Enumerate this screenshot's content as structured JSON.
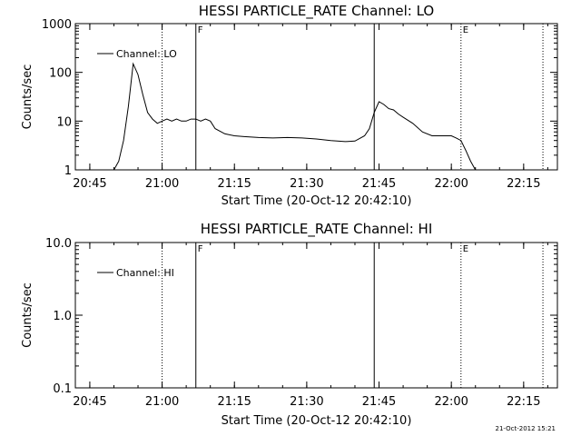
{
  "chart_data": [
    {
      "type": "line",
      "title": "HESSI PARTICLE_RATE Channel: LO",
      "xlabel": "Start Time (20-Oct-12 20:42:10)",
      "ylabel": "Counts/sec",
      "yscale": "log",
      "ylim": [
        1,
        1000
      ],
      "xlim": [
        "20:42",
        "22:22"
      ],
      "xticks": [
        "20:45",
        "21:00",
        "21:15",
        "21:30",
        "21:45",
        "22:00",
        "22:15"
      ],
      "yticks": [
        "1",
        "10",
        "100",
        "1000"
      ],
      "legend": "Channel: LO",
      "legend_position": "top-left",
      "markers": [
        {
          "label": "F",
          "time": "21:07",
          "style": "solid"
        },
        {
          "label": "",
          "time": "21:44",
          "style": "solid"
        },
        {
          "label": "E",
          "time": "22:02",
          "style": "dotted"
        }
      ],
      "dotted_lines": [
        "21:00",
        "22:19"
      ],
      "series": [
        {
          "x": [
            "20:49",
            "20:50",
            "20:51",
            "20:52",
            "20:53",
            "20:54",
            "20:55",
            "20:56",
            "20:57",
            "20:58",
            "20:59",
            "21:00",
            "21:01",
            "21:02",
            "21:03",
            "21:04",
            "21:05",
            "21:06",
            "21:07",
            "21:08",
            "21:09",
            "21:10",
            "21:11",
            "21:13",
            "21:15",
            "21:17",
            "21:20",
            "21:23",
            "21:26",
            "21:29",
            "21:32",
            "21:35",
            "21:38",
            "21:40",
            "21:42",
            "21:43",
            "21:44",
            "21:45",
            "21:46",
            "21:47",
            "21:48",
            "21:49",
            "21:50",
            "21:52",
            "21:54",
            "21:56",
            "21:58",
            "22:00",
            "22:01",
            "22:02",
            "22:03",
            "22:04",
            "22:05"
          ],
          "y": [
            1,
            1,
            1.5,
            4,
            20,
            150,
            90,
            35,
            15,
            11,
            9,
            10,
            11,
            10,
            11,
            10,
            10,
            11,
            11,
            10,
            11,
            10,
            7,
            5.5,
            5,
            4.8,
            4.6,
            4.5,
            4.6,
            4.5,
            4.3,
            4.0,
            3.8,
            3.9,
            5,
            7,
            15,
            25,
            22,
            18,
            17,
            14,
            12,
            9,
            6,
            5,
            5,
            5,
            4.5,
            4,
            2.5,
            1.5,
            1
          ]
        }
      ]
    },
    {
      "type": "line",
      "title": "HESSI PARTICLE_RATE Channel: HI",
      "xlabel": "Start Time (20-Oct-12 20:42:10)",
      "ylabel": "Counts/sec",
      "yscale": "log",
      "ylim": [
        0.1,
        10
      ],
      "xlim": [
        "20:42",
        "22:22"
      ],
      "xticks": [
        "20:45",
        "21:00",
        "21:15",
        "21:30",
        "21:45",
        "22:00",
        "22:15"
      ],
      "yticks": [
        "0.1",
        "1.0",
        "10.0"
      ],
      "legend": "Channel: HI",
      "legend_position": "top-left",
      "markers": [
        {
          "label": "F",
          "time": "21:07",
          "style": "solid"
        },
        {
          "label": "",
          "time": "21:44",
          "style": "solid"
        },
        {
          "label": "E",
          "time": "22:02",
          "style": "dotted"
        }
      ],
      "dotted_lines": [
        "21:00",
        "22:19"
      ],
      "series": []
    }
  ],
  "timestamp": "21-Oct-2012 15:21"
}
